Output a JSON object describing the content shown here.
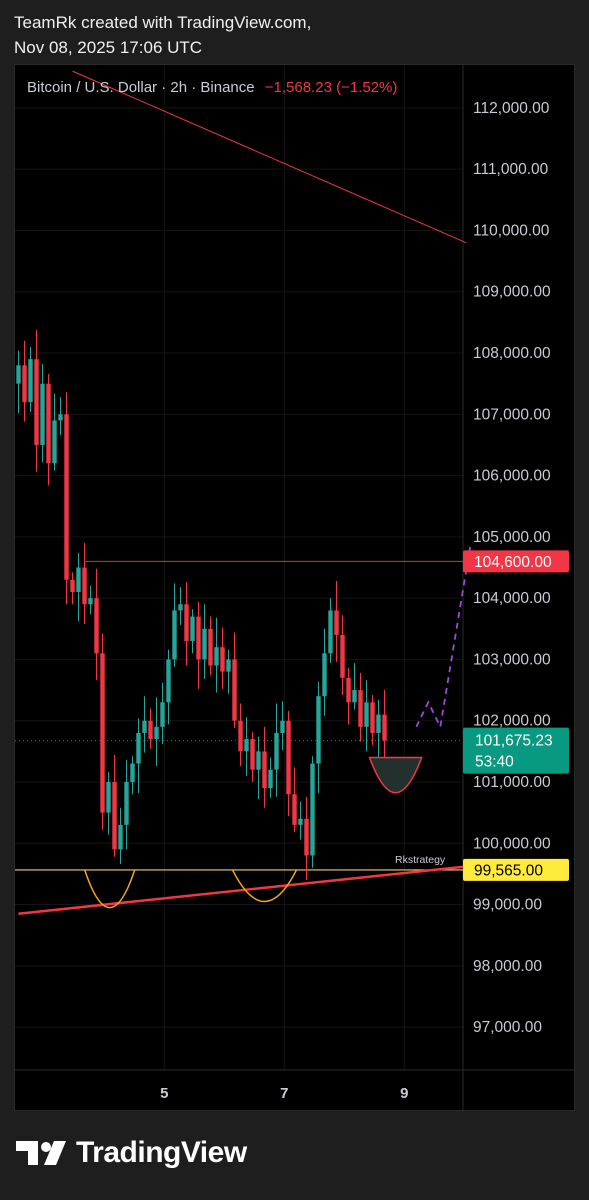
{
  "caption": {
    "line1": "TeamRk created with TradingView.com,",
    "line2": "Nov 08, 2025 17:06 UTC"
  },
  "header": {
    "symbol": "Bitcoin / U.S. Dollar · 2h · Binance",
    "change": "−1,568.23 (−1.52%)"
  },
  "brand": {
    "name": "TradingView",
    "icon": "tradingview-logo-icon"
  },
  "colors": {
    "up": "#26a69a",
    "down": "#f23645",
    "resistance": "#f23645",
    "support": "#f0d060",
    "arc": "#f5a623",
    "projection": "#9c4ad6",
    "price_badge": "#089981",
    "support_badge": "#ffeb3b"
  },
  "chart_data": {
    "type": "candlestick",
    "title": "Bitcoin / U.S. Dollar · 2h · Binance",
    "y_axis": {
      "min": 96300,
      "max": 112700,
      "ticks": [
        112000,
        111000,
        110000,
        109000,
        108000,
        107000,
        106000,
        105000,
        104000,
        103000,
        102000,
        101000,
        100000,
        99000,
        98000,
        97000
      ],
      "tick_labels": [
        "112,000.00",
        "111,000.00",
        "110,000.00",
        "109,000.00",
        "108,000.00",
        "107,000.00",
        "106,000.00",
        "105,000.00",
        "104,000.00",
        "103,000.00",
        "102,000.00",
        "101,000.00",
        "100,000.00",
        "99,000.00",
        "98,000.00",
        "97,000.00"
      ]
    },
    "x_axis": {
      "tick_labels": [
        "5",
        "7",
        "9"
      ],
      "tick_positions": [
        24.3,
        44.3,
        64.3
      ]
    },
    "close_series": [
      107800,
      107200,
      107900,
      106500,
      107500,
      106200,
      106900,
      107000,
      104300,
      104100,
      104500,
      103900,
      104000,
      103100,
      100500,
      101000,
      99900,
      100300,
      101000,
      101300,
      101800,
      102000,
      101700,
      101900,
      102300,
      103000,
      103800,
      103900,
      103300,
      103700,
      103000,
      103500,
      102900,
      103200,
      102800,
      103000,
      102000,
      101500,
      101700,
      101200,
      101500,
      100900,
      101200,
      101800,
      102000,
      100800,
      100300,
      100400,
      99800,
      101300,
      102400,
      103100,
      103800,
      103400,
      102700,
      102300,
      102500,
      101900,
      102300,
      101800,
      102100,
      101675
    ],
    "projection_path": [
      {
        "x": 66.3,
        "y": 101900
      },
      {
        "x": 68.3,
        "y": 102300
      },
      {
        "x": 70.3,
        "y": 101900
      },
      {
        "x": 75.3,
        "y": 104850
      }
    ],
    "annotations": {
      "resistance_level": 104600,
      "resistance_label": "104,600.00",
      "support_level": 99565,
      "support_label": "99,565.00",
      "support_name": "Rkstrategy",
      "current_price": 101675.23,
      "current_price_label": "101,675.23",
      "countdown": "53:40",
      "rising_trendline": [
        {
          "x": 0,
          "y": 98850
        },
        {
          "x": 74.6,
          "y": 99620
        }
      ],
      "falling_trendline": [
        {
          "x": 9,
          "y": 112600
        },
        {
          "x": 74.6,
          "y": 109800
        }
      ]
    }
  }
}
